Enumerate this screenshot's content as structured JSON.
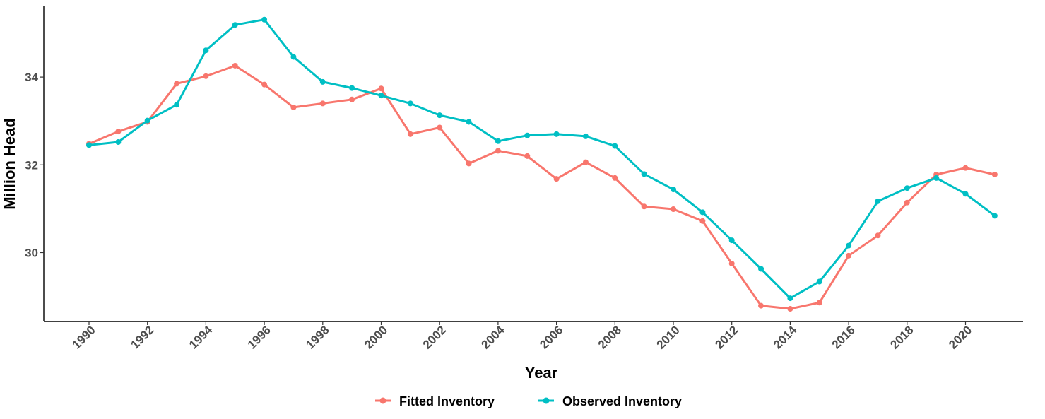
{
  "chart_data": {
    "type": "line",
    "title": "",
    "xlabel": "Year",
    "ylabel": "Million Head",
    "x": [
      1990,
      1991,
      1992,
      1993,
      1994,
      1995,
      1996,
      1997,
      1998,
      1999,
      2000,
      2001,
      2002,
      2003,
      2004,
      2005,
      2006,
      2007,
      2008,
      2009,
      2010,
      2011,
      2012,
      2013,
      2014,
      2015,
      2016,
      2017,
      2018,
      2019,
      2020,
      2021
    ],
    "xticks": [
      "1990",
      "1992",
      "1994",
      "1996",
      "1998",
      "2000",
      "2002",
      "2004",
      "2006",
      "2008",
      "2010",
      "2012",
      "2014",
      "2016",
      "2018",
      "2020"
    ],
    "yticks": [
      "30",
      "32",
      "34"
    ],
    "xlim": [
      1989.5,
      2021.5
    ],
    "ylim": [
      28.4,
      35.6
    ],
    "grid": false,
    "legend_position": "bottom",
    "series": [
      {
        "name": "Fitted Inventory",
        "color": "#F8766D",
        "values": [
          32.48,
          32.76,
          32.98,
          33.85,
          34.02,
          34.26,
          33.83,
          33.31,
          33.4,
          33.49,
          33.74,
          32.7,
          32.85,
          32.03,
          32.32,
          32.2,
          31.68,
          32.06,
          31.7,
          31.05,
          30.99,
          30.72,
          29.75,
          28.79,
          28.72,
          28.86,
          29.93,
          30.39,
          31.14,
          31.78,
          31.93,
          31.78
        ]
      },
      {
        "name": "Observed Inventory",
        "color": "#00BFC4",
        "values": [
          32.45,
          32.52,
          33.01,
          33.37,
          34.61,
          35.19,
          35.31,
          34.46,
          33.89,
          33.75,
          33.58,
          33.4,
          33.13,
          32.98,
          32.54,
          32.67,
          32.7,
          32.65,
          32.43,
          31.79,
          31.44,
          30.92,
          30.28,
          29.63,
          28.96,
          29.34,
          30.16,
          31.17,
          31.47,
          31.7,
          31.34,
          30.84
        ]
      }
    ]
  }
}
